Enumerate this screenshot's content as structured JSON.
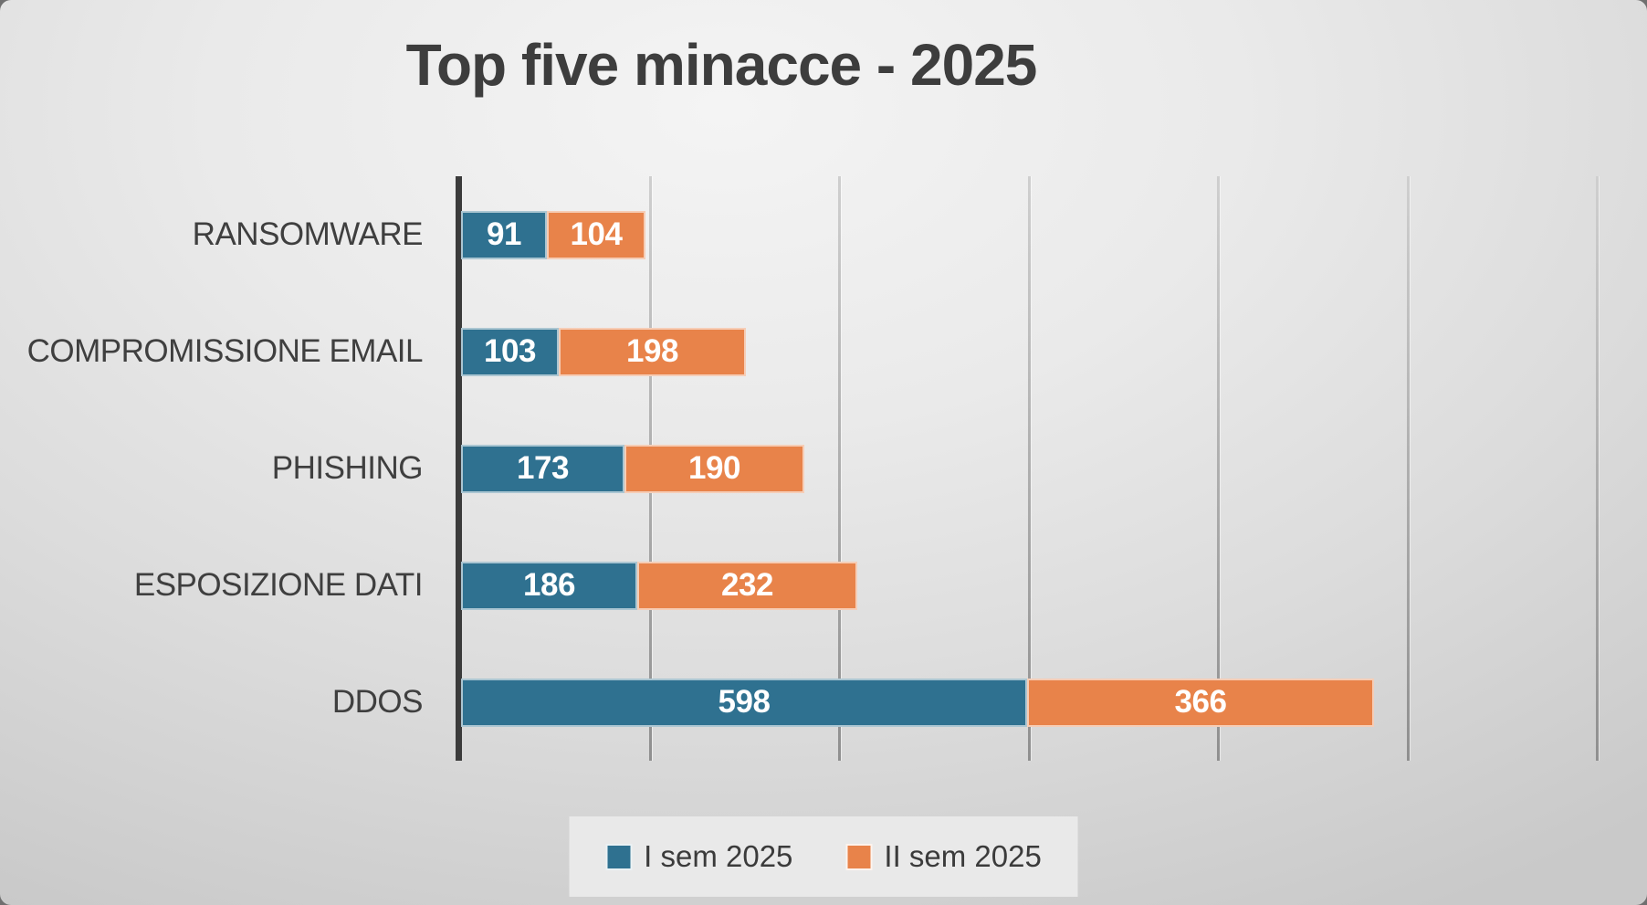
{
  "chart_data": {
    "type": "bar",
    "orientation": "horizontal",
    "stacked": true,
    "title": "Top five minacce - 2025",
    "categories": [
      "RANSOMWARE",
      "COMPROMISSIONE EMAIL",
      "PHISHING",
      "ESPOSIZIONE DATI",
      "DDOS"
    ],
    "series": [
      {
        "name": "I sem 2025",
        "color": "#2F7190",
        "values": [
          91,
          103,
          173,
          186,
          598
        ]
      },
      {
        "name": "II sem 2025",
        "color": "#E8834A",
        "values": [
          104,
          198,
          190,
          232,
          366
        ]
      }
    ],
    "value_labels": "inside-center, white, bold",
    "xlim": [
      0,
      1200
    ],
    "gridline_interval": 200,
    "x_tick_labels_visible": false,
    "grid": true,
    "legend_position": "bottom-center"
  },
  "colors": {
    "title_text": "#3d3d3d",
    "category_text": "#3f3f3f",
    "axis_line": "#3b3b3b",
    "gridline": "#9a9a9a",
    "legend_background": "#e9e9e9"
  }
}
